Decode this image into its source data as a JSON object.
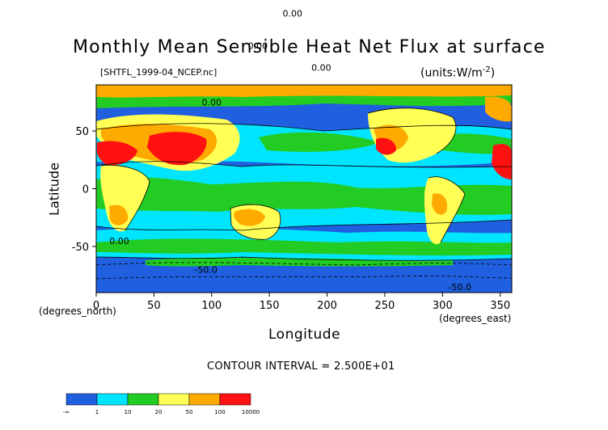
{
  "chart_data": {
    "type": "heatmap",
    "title": "Monthly Mean Sensible Heat Net Flux at surface",
    "source_label": "[SHTFL_1999-04_NCEP.nc]",
    "units_label": "(units:W/m^-2)",
    "xlabel": "Longitude",
    "ylabel": "Latitude",
    "x_unit_label": "(degrees_east)",
    "y_unit_label": "(degrees_north)",
    "xlim": [
      0,
      360
    ],
    "ylim": [
      -90,
      90
    ],
    "x_ticks": [
      0,
      50,
      100,
      150,
      200,
      250,
      300,
      350
    ],
    "y_ticks": [
      50,
      0,
      -50
    ],
    "contour_interval_label": "CONTOUR INTERVAL = 2.500E+01",
    "contour_labels": [
      "0.00",
      "0.00",
      "0.00",
      "0.00",
      "0.00",
      "-50.0",
      "-50.0"
    ],
    "colorbar": {
      "boundaries": [
        "-∞",
        "1",
        "10",
        "20",
        "50",
        "100",
        "10000"
      ],
      "colors": [
        "#1f5fe0",
        "#00e5ff",
        "#22cc22",
        "#ffff55",
        "#ffaa00",
        "#ff1111"
      ]
    }
  }
}
